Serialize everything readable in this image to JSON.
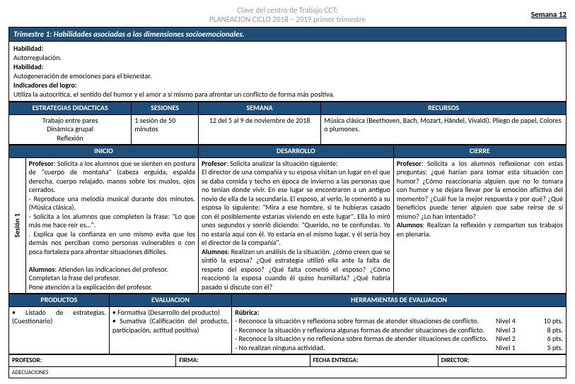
{
  "header": {
    "line1": "Clave del centro de Trabajo CCT:",
    "line2": "PLANEACION CICLO 2018 – 2019 primer trimestre",
    "week_badge": "Semana 12"
  },
  "banner": "Trimestre 1: Habilidades asociadas a las dimensiones socioemocionales.",
  "box": {
    "h1_label": "Habilidad:",
    "h1_text": "Autorregulación.",
    "h2_label": "Habilidad:",
    "h2_text": "Autogeneración de emociones para el bienestar.",
    "ind_label": "Indicadores del logro:",
    "ind_text": "Utiliza la autocrítica, el sentido del humor y el amor a sí mismo para afrontar un conflicto de forma más positiva."
  },
  "row1": {
    "h_estrategias": "ESTRATEGIAS DIDACTICAS",
    "h_sesiones": "SESIONES",
    "h_semana": "SEMANA",
    "h_recursos": "RECURSOS",
    "estrategias": "Trabajo entre pares\nDinámica grupal\nReflexión",
    "sesiones": "1 sesión de 50 minutos",
    "semana": "12 del 5 al 9 de noviembre de 2018",
    "recursos": "Música clásica (Beethoven, Bach, Mozart, Händel, Vivaldi). Pliego de papel, Colores o plumones."
  },
  "row2": {
    "h_inicio": "INICIO",
    "h_desarrollo": "DESARROLLO",
    "h_cierre": "CIERRE",
    "sesion_label": "Sesión 1",
    "inicio": "Profesor: Solicita a los alumnos que se sienten en postura de \"cuerpo de montaña\" (cabeza erguida, espalda derecha, cuerpo relajado, manos sobre los muslos, ojos cerrados.\n- Reproduce una melodía musical durante dos minutos. (Música clásica).\n- Solicita a los alumnos que completen la frase: \"Lo que más me hace reír es…\".\n. Explica que la confianza en uno mismo evita que los demás nos perciban como personas vulnerables o con poca fortaleza para afrontar situaciones difíciles.\n\nAlumnos: Atienden las indicaciones del profesor.\nCompletan la frase del profesor.\nPone atención a la explicación del profesor.",
    "desarrollo": "Profesor: Solicita analizar la situación siguiente:\nEl director de una compañía y su esposa visitan un lugar en el que se daba comida y techo en época de invierno a las personas que no tenían donde vivir. En ese lugar se encontraron a un antiguo novio de ella de la secundaria. El esposo, al verlo, le comentó a su esposa lo siguiente: \"Mira a ese hombre, si te hubieras casado con él posiblemente estarías viviendo en este lugar\". Ella lo miró unos segundos y sonrió diciendo: \"Querido, no te confundas. Yo no estaría aquí con él. Yo estaría en el mismo lugar, y él sería hoy el director de la compañía\".\nAlumnos: Realizan un análisis de la situación. ¿cómo creen que se sintió la esposa? ¿Qué estrategia utilizó ella ante la falta de respeto del esposo? ¿Qué falta cometió el esposo? ¿Cómo reaccionó la esposa cuando él quiso humillarla? ¿Qué habría pasado si discute con él?",
    "cierre": "Profesor: Solicita a los alumnos reflexionar con estas preguntas: ¿qué harían para tomar esta situación con humor? ¿Cómo reaccionaría alguien que no lo tomara con humor y se dejara llevar por la emoción aflictiva del momento? ¿Cuál fue la mejor respuesta y por qué? ¿Qué beneficios puede tener alguien que sabe reírse de sí mismo? ¿Lo han intentado?\nAlumnos: Realizan la reflexión y comparten sus trabajos en plenaria."
  },
  "row3": {
    "h_productos": "PRODUCTOS",
    "h_evaluacion": "EVALUACION",
    "h_herramientas": "HERRAMIENTAS DE EVALUACION",
    "productos": "•    Listado    de estrategias. (Cuestionario)",
    "evaluacion": "•    Formativa    (Desarrollo del producto)\n•    Sumativa    (Calificación del producto, participación, actitud positiva)",
    "rubrica_label": "Rúbrica:",
    "rubric": [
      {
        "t": "- Reconoce la situación y reflexiona sobre formas de atender situaciones de conflicto.",
        "n": "Nivel 4",
        "p": "10 pts."
      },
      {
        "t": "- Reconoce la situación y reflexiona algunas formas de atender situaciones de conflicto.",
        "n": "Nivel 3",
        "p": "8 pts."
      },
      {
        "t": "- Reconoce la situación y no reflexiona sobre formas de atender situaciones de conflicto.",
        "n": "Nivel 2",
        "p": "6 pts."
      },
      {
        "t": "- No realizan ninguna actividad.",
        "n": "Nivel 1",
        "p": "5 pts."
      }
    ]
  },
  "signatures": {
    "profesor": "PROFESOR:",
    "firma": "FIRMA:",
    "fecha": "FECHA ENTREGA:",
    "director": "DIRECTOR:"
  },
  "footer": {
    "adecuaciones": "ADECUACIONES"
  }
}
